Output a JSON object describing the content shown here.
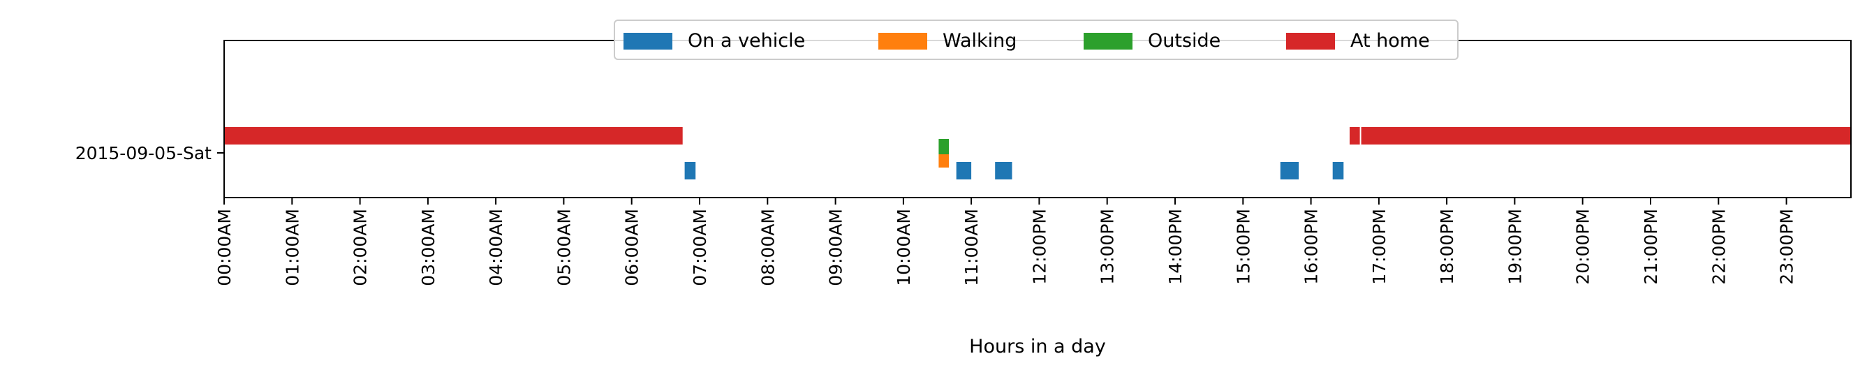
{
  "chart_data": {
    "type": "timeline",
    "title": "",
    "xlabel": "Hours in a day",
    "ylabel": "",
    "xlim": [
      0,
      23.95
    ],
    "row_label": "2015-09-05-Sat",
    "x_ticks": [
      {
        "hour": 0,
        "label": "00:00AM"
      },
      {
        "hour": 1,
        "label": "01:00AM"
      },
      {
        "hour": 2,
        "label": "02:00AM"
      },
      {
        "hour": 3,
        "label": "03:00AM"
      },
      {
        "hour": 4,
        "label": "04:00AM"
      },
      {
        "hour": 5,
        "label": "05:00AM"
      },
      {
        "hour": 6,
        "label": "06:00AM"
      },
      {
        "hour": 7,
        "label": "07:00AM"
      },
      {
        "hour": 8,
        "label": "08:00AM"
      },
      {
        "hour": 9,
        "label": "09:00AM"
      },
      {
        "hour": 10,
        "label": "10:00AM"
      },
      {
        "hour": 11,
        "label": "11:00AM"
      },
      {
        "hour": 12,
        "label": "12:00PM"
      },
      {
        "hour": 13,
        "label": "13:00PM"
      },
      {
        "hour": 14,
        "label": "14:00PM"
      },
      {
        "hour": 15,
        "label": "15:00PM"
      },
      {
        "hour": 16,
        "label": "16:00PM"
      },
      {
        "hour": 17,
        "label": "17:00PM"
      },
      {
        "hour": 18,
        "label": "18:00PM"
      },
      {
        "hour": 19,
        "label": "19:00PM"
      },
      {
        "hour": 20,
        "label": "20:00PM"
      },
      {
        "hour": 21,
        "label": "21:00PM"
      },
      {
        "hour": 22,
        "label": "22:00PM"
      },
      {
        "hour": 23,
        "label": "23:00PM"
      }
    ],
    "legend_position": "top-center",
    "series": [
      {
        "name": "On a vehicle",
        "color": "#1f77b4",
        "intervals": [
          [
            6.78,
            6.94
          ],
          [
            10.78,
            11.0
          ],
          [
            11.35,
            11.6
          ],
          [
            15.55,
            15.82
          ],
          [
            16.32,
            16.48
          ]
        ]
      },
      {
        "name": "Walking",
        "color": "#ff7f0e",
        "intervals": [
          [
            10.52,
            10.67
          ]
        ]
      },
      {
        "name": "Outside",
        "color": "#2ca02c",
        "intervals": [
          [
            10.52,
            10.67
          ]
        ]
      },
      {
        "name": "At home",
        "color": "#d62728",
        "intervals": [
          [
            0.0,
            6.75
          ],
          [
            16.57,
            16.72
          ],
          [
            16.74,
            23.95
          ]
        ]
      }
    ]
  }
}
